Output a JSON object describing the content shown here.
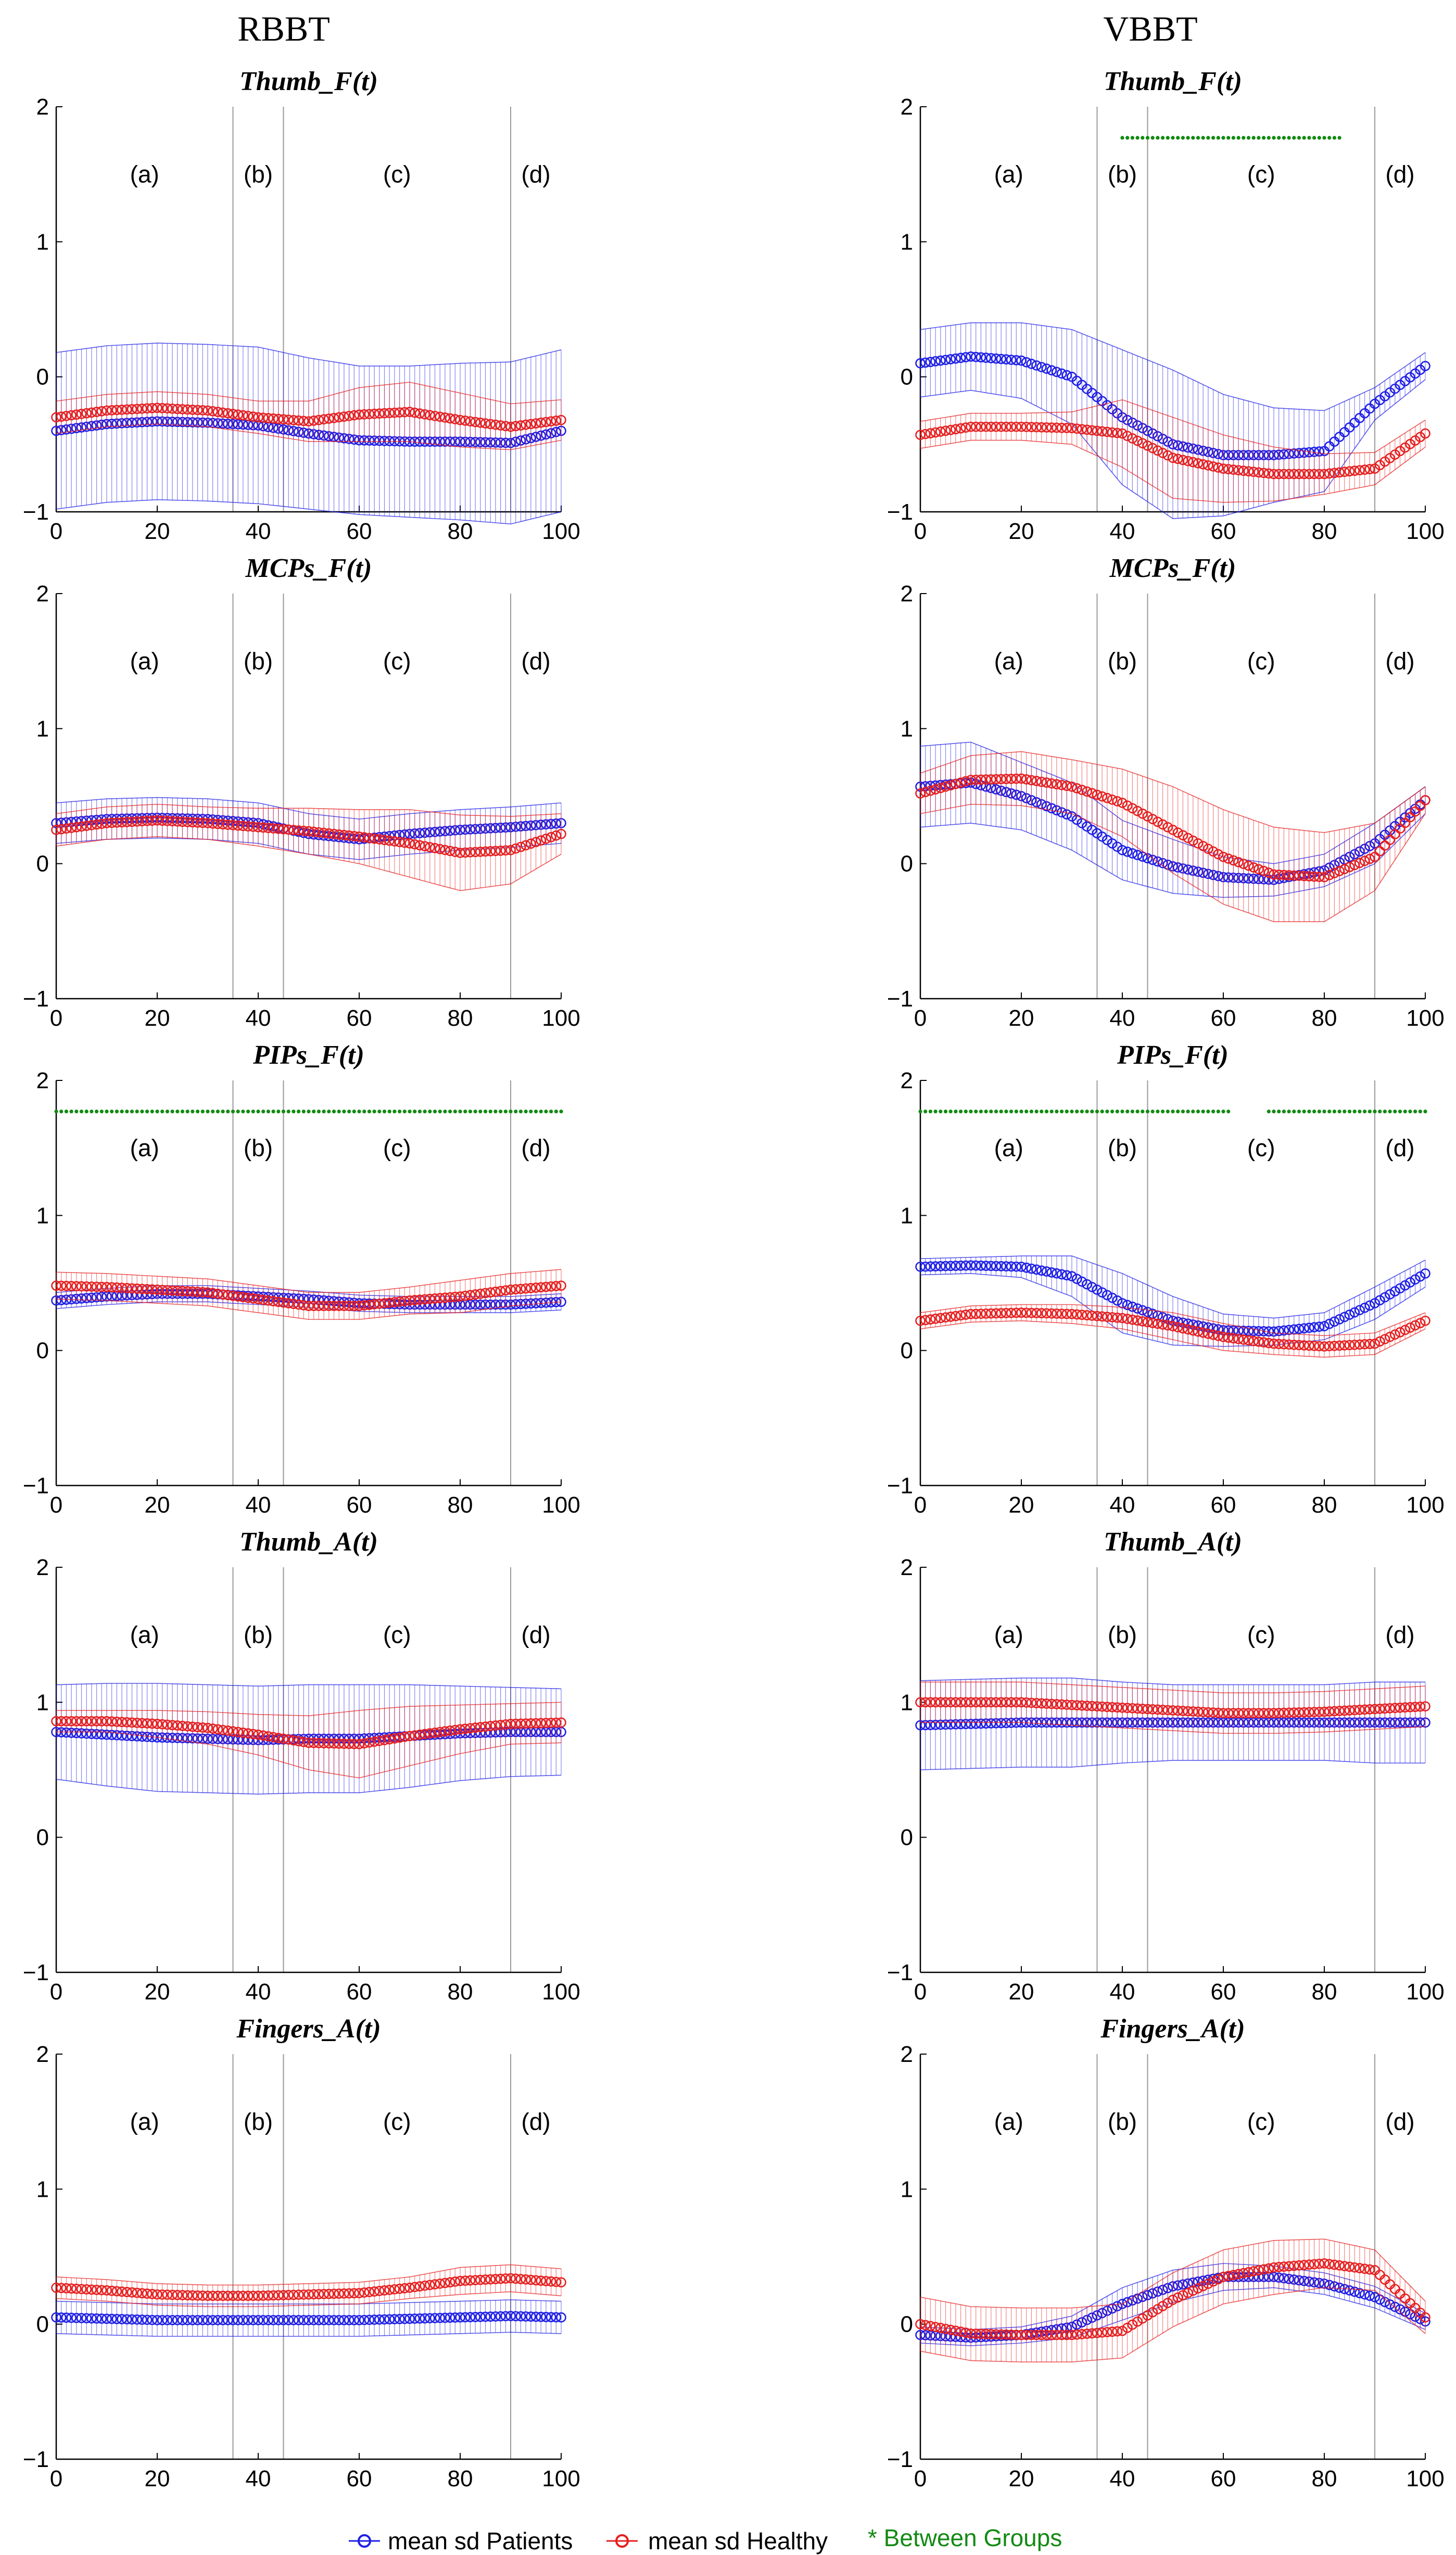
{
  "column_titles": [
    "RBBT",
    "VBBT"
  ],
  "phase_labels": [
    "(a)",
    "(b)",
    "(c)",
    "(d)"
  ],
  "legend": {
    "patients_label": "mean sd Patients",
    "healthy_label": "mean sd Healthy",
    "sig_label": "* Between Groups",
    "patients_color": "#1f1fe6",
    "healthy_color": "#e61f1f",
    "sig_color": "#128a12"
  },
  "chart_data": [
    {
      "type": "line",
      "column": "RBBT",
      "title": "Thumb_F(t)",
      "xlim": [
        0,
        100
      ],
      "ylim": [
        -1,
        2
      ],
      "xticks": [
        0,
        20,
        40,
        60,
        80,
        100
      ],
      "yticks": [
        -1,
        0,
        1,
        2
      ],
      "phase_boundaries": [
        35,
        45,
        90
      ],
      "x": [
        0,
        10,
        20,
        30,
        40,
        50,
        60,
        70,
        80,
        90,
        100
      ],
      "series": [
        {
          "name": "Patients",
          "values": [
            -0.4,
            -0.35,
            -0.33,
            -0.34,
            -0.36,
            -0.42,
            -0.47,
            -0.48,
            -0.48,
            -0.49,
            -0.4
          ],
          "sd": [
            0.58,
            0.58,
            0.58,
            0.58,
            0.58,
            0.56,
            0.55,
            0.56,
            0.58,
            0.6,
            0.6
          ]
        },
        {
          "name": "Healthy",
          "values": [
            -0.3,
            -0.25,
            -0.23,
            -0.25,
            -0.3,
            -0.33,
            -0.28,
            -0.26,
            -0.32,
            -0.37,
            -0.32
          ],
          "sd": [
            0.12,
            0.12,
            0.12,
            0.12,
            0.12,
            0.15,
            0.2,
            0.22,
            0.2,
            0.17,
            0.15
          ]
        }
      ],
      "significance": []
    },
    {
      "type": "line",
      "column": "VBBT",
      "title": "Thumb_F(t)",
      "xlim": [
        0,
        100
      ],
      "ylim": [
        -1,
        2
      ],
      "xticks": [
        0,
        20,
        40,
        60,
        80,
        100
      ],
      "yticks": [
        -1,
        0,
        1,
        2
      ],
      "phase_boundaries": [
        35,
        45,
        90
      ],
      "x": [
        0,
        10,
        20,
        30,
        40,
        50,
        60,
        70,
        80,
        90,
        100
      ],
      "series": [
        {
          "name": "Patients",
          "values": [
            0.1,
            0.15,
            0.12,
            0.0,
            -0.3,
            -0.5,
            -0.58,
            -0.58,
            -0.55,
            -0.2,
            0.08
          ],
          "sd": [
            0.25,
            0.25,
            0.28,
            0.35,
            0.5,
            0.55,
            0.45,
            0.35,
            0.3,
            0.12,
            0.1
          ]
        },
        {
          "name": "Healthy",
          "values": [
            -0.43,
            -0.37,
            -0.37,
            -0.38,
            -0.42,
            -0.6,
            -0.68,
            -0.72,
            -0.72,
            -0.68,
            -0.42
          ],
          "sd": [
            0.1,
            0.1,
            0.1,
            0.12,
            0.25,
            0.3,
            0.25,
            0.2,
            0.15,
            0.12,
            0.1
          ]
        }
      ],
      "significance": [
        [
          40,
          83
        ]
      ]
    },
    {
      "type": "line",
      "column": "RBBT",
      "title": "MCPs_F(t)",
      "xlim": [
        0,
        100
      ],
      "ylim": [
        -1,
        2
      ],
      "xticks": [
        0,
        20,
        40,
        60,
        80,
        100
      ],
      "yticks": [
        -1,
        0,
        1,
        2
      ],
      "phase_boundaries": [
        35,
        45,
        90
      ],
      "x": [
        0,
        10,
        20,
        30,
        40,
        50,
        60,
        70,
        80,
        90,
        100
      ],
      "series": [
        {
          "name": "Patients",
          "values": [
            0.3,
            0.33,
            0.34,
            0.33,
            0.3,
            0.22,
            0.18,
            0.22,
            0.25,
            0.27,
            0.3
          ],
          "sd": [
            0.15,
            0.15,
            0.15,
            0.15,
            0.15,
            0.15,
            0.15,
            0.15,
            0.15,
            0.15,
            0.15
          ]
        },
        {
          "name": "Healthy",
          "values": [
            0.25,
            0.3,
            0.32,
            0.3,
            0.27,
            0.24,
            0.2,
            0.15,
            0.08,
            0.1,
            0.22
          ],
          "sd": [
            0.12,
            0.12,
            0.12,
            0.12,
            0.14,
            0.17,
            0.2,
            0.25,
            0.28,
            0.25,
            0.15
          ]
        }
      ],
      "significance": []
    },
    {
      "type": "line",
      "column": "VBBT",
      "title": "MCPs_F(t)",
      "xlim": [
        0,
        100
      ],
      "ylim": [
        -1,
        2
      ],
      "xticks": [
        0,
        20,
        40,
        60,
        80,
        100
      ],
      "yticks": [
        -1,
        0,
        1,
        2
      ],
      "phase_boundaries": [
        35,
        45,
        90
      ],
      "x": [
        0,
        10,
        20,
        30,
        40,
        50,
        60,
        70,
        80,
        90,
        100
      ],
      "series": [
        {
          "name": "Patients",
          "values": [
            0.57,
            0.6,
            0.5,
            0.35,
            0.1,
            -0.02,
            -0.1,
            -0.12,
            -0.05,
            0.15,
            0.47
          ],
          "sd": [
            0.3,
            0.3,
            0.25,
            0.25,
            0.22,
            0.2,
            0.15,
            0.12,
            0.12,
            0.15,
            0.1
          ]
        },
        {
          "name": "Healthy",
          "values": [
            0.52,
            0.62,
            0.63,
            0.57,
            0.45,
            0.25,
            0.05,
            -0.08,
            -0.1,
            0.05,
            0.47
          ],
          "sd": [
            0.15,
            0.18,
            0.2,
            0.2,
            0.25,
            0.32,
            0.35,
            0.35,
            0.33,
            0.25,
            0.1
          ]
        }
      ],
      "significance": []
    },
    {
      "type": "line",
      "column": "RBBT",
      "title": "PIPs_F(t)",
      "xlim": [
        0,
        100
      ],
      "ylim": [
        -1,
        2
      ],
      "xticks": [
        0,
        20,
        40,
        60,
        80,
        100
      ],
      "yticks": [
        -1,
        0,
        1,
        2
      ],
      "phase_boundaries": [
        35,
        45,
        90
      ],
      "x": [
        0,
        10,
        20,
        30,
        40,
        50,
        60,
        70,
        80,
        90,
        100
      ],
      "series": [
        {
          "name": "Patients",
          "values": [
            0.37,
            0.4,
            0.42,
            0.42,
            0.4,
            0.38,
            0.35,
            0.34,
            0.34,
            0.34,
            0.36
          ],
          "sd": [
            0.06,
            0.06,
            0.06,
            0.06,
            0.06,
            0.06,
            0.06,
            0.06,
            0.06,
            0.06,
            0.06
          ]
        },
        {
          "name": "Healthy",
          "values": [
            0.48,
            0.47,
            0.45,
            0.43,
            0.38,
            0.33,
            0.33,
            0.37,
            0.4,
            0.45,
            0.48
          ],
          "sd": [
            0.1,
            0.1,
            0.1,
            0.1,
            0.1,
            0.1,
            0.1,
            0.1,
            0.12,
            0.12,
            0.12
          ]
        }
      ],
      "significance": [
        [
          0,
          100
        ]
      ]
    },
    {
      "type": "line",
      "column": "VBBT",
      "title": "PIPs_F(t)",
      "xlim": [
        0,
        100
      ],
      "ylim": [
        -1,
        2
      ],
      "xticks": [
        0,
        20,
        40,
        60,
        80,
        100
      ],
      "yticks": [
        -1,
        0,
        1,
        2
      ],
      "phase_boundaries": [
        35,
        45,
        90
      ],
      "x": [
        0,
        10,
        20,
        30,
        40,
        50,
        60,
        70,
        80,
        90,
        100
      ],
      "series": [
        {
          "name": "Patients",
          "values": [
            0.62,
            0.63,
            0.62,
            0.55,
            0.35,
            0.22,
            0.15,
            0.14,
            0.18,
            0.35,
            0.57
          ],
          "sd": [
            0.06,
            0.06,
            0.08,
            0.15,
            0.22,
            0.18,
            0.12,
            0.1,
            0.1,
            0.12,
            0.1
          ]
        },
        {
          "name": "Healthy",
          "values": [
            0.22,
            0.27,
            0.28,
            0.27,
            0.24,
            0.18,
            0.1,
            0.05,
            0.03,
            0.05,
            0.22
          ],
          "sd": [
            0.06,
            0.06,
            0.06,
            0.07,
            0.08,
            0.1,
            0.1,
            0.08,
            0.08,
            0.08,
            0.06
          ]
        }
      ],
      "significance": [
        [
          0,
          61
        ],
        [
          69,
          100
        ]
      ]
    },
    {
      "type": "line",
      "column": "RBBT",
      "title": "Thumb_A(t)",
      "xlim": [
        0,
        100
      ],
      "ylim": [
        -1,
        2
      ],
      "xticks": [
        0,
        20,
        40,
        60,
        80,
        100
      ],
      "yticks": [
        -1,
        0,
        1,
        2
      ],
      "phase_boundaries": [
        35,
        45,
        90
      ],
      "x": [
        0,
        10,
        20,
        30,
        40,
        50,
        60,
        70,
        80,
        90,
        100
      ],
      "series": [
        {
          "name": "Patients",
          "values": [
            0.78,
            0.76,
            0.74,
            0.73,
            0.72,
            0.73,
            0.73,
            0.75,
            0.77,
            0.78,
            0.78
          ],
          "sd": [
            0.35,
            0.38,
            0.4,
            0.4,
            0.4,
            0.4,
            0.4,
            0.38,
            0.35,
            0.33,
            0.32
          ]
        },
        {
          "name": "Healthy",
          "values": [
            0.86,
            0.86,
            0.84,
            0.81,
            0.76,
            0.7,
            0.69,
            0.75,
            0.8,
            0.84,
            0.85
          ],
          "sd": [
            0.08,
            0.08,
            0.1,
            0.12,
            0.15,
            0.2,
            0.25,
            0.22,
            0.18,
            0.15,
            0.15
          ]
        }
      ],
      "significance": []
    },
    {
      "type": "line",
      "column": "VBBT",
      "title": "Thumb_A(t)",
      "xlim": [
        0,
        100
      ],
      "ylim": [
        -1,
        2
      ],
      "xticks": [
        0,
        20,
        40,
        60,
        80,
        100
      ],
      "yticks": [
        -1,
        0,
        1,
        2
      ],
      "phase_boundaries": [
        35,
        45,
        90
      ],
      "x": [
        0,
        10,
        20,
        30,
        40,
        50,
        60,
        70,
        80,
        90,
        100
      ],
      "series": [
        {
          "name": "Patients",
          "values": [
            0.83,
            0.84,
            0.85,
            0.85,
            0.85,
            0.85,
            0.85,
            0.85,
            0.85,
            0.85,
            0.85
          ],
          "sd": [
            0.33,
            0.33,
            0.33,
            0.33,
            0.3,
            0.28,
            0.28,
            0.28,
            0.28,
            0.3,
            0.3
          ]
        },
        {
          "name": "Healthy",
          "values": [
            1.0,
            1.0,
            1.0,
            0.98,
            0.96,
            0.94,
            0.92,
            0.92,
            0.93,
            0.95,
            0.97
          ],
          "sd": [
            0.15,
            0.15,
            0.15,
            0.15,
            0.15,
            0.15,
            0.15,
            0.15,
            0.15,
            0.15,
            0.15
          ]
        }
      ],
      "significance": []
    },
    {
      "type": "line",
      "column": "RBBT",
      "title": "Fingers_A(t)",
      "xlim": [
        0,
        100
      ],
      "ylim": [
        -1,
        2
      ],
      "xticks": [
        0,
        20,
        40,
        60,
        80,
        100
      ],
      "yticks": [
        -1,
        0,
        1,
        2
      ],
      "phase_boundaries": [
        35,
        45,
        90
      ],
      "x": [
        0,
        10,
        20,
        30,
        40,
        50,
        60,
        70,
        80,
        90,
        100
      ],
      "series": [
        {
          "name": "Patients",
          "values": [
            0.05,
            0.04,
            0.03,
            0.03,
            0.03,
            0.03,
            0.03,
            0.04,
            0.05,
            0.06,
            0.05
          ],
          "sd": [
            0.12,
            0.12,
            0.12,
            0.12,
            0.12,
            0.12,
            0.12,
            0.12,
            0.12,
            0.12,
            0.12
          ]
        },
        {
          "name": "Healthy",
          "values": [
            0.27,
            0.25,
            0.22,
            0.21,
            0.21,
            0.22,
            0.23,
            0.27,
            0.32,
            0.34,
            0.31
          ],
          "sd": [
            0.08,
            0.08,
            0.08,
            0.08,
            0.08,
            0.08,
            0.08,
            0.08,
            0.1,
            0.1,
            0.1
          ]
        }
      ],
      "significance": []
    },
    {
      "type": "line",
      "column": "VBBT",
      "title": "Fingers_A(t)",
      "xlim": [
        0,
        100
      ],
      "ylim": [
        -1,
        2
      ],
      "xticks": [
        0,
        20,
        40,
        60,
        80,
        100
      ],
      "yticks": [
        -1,
        0,
        1,
        2
      ],
      "phase_boundaries": [
        35,
        45,
        90
      ],
      "x": [
        0,
        10,
        20,
        30,
        40,
        50,
        60,
        70,
        80,
        90,
        100
      ],
      "series": [
        {
          "name": "Patients",
          "values": [
            -0.08,
            -0.1,
            -0.08,
            -0.02,
            0.15,
            0.28,
            0.35,
            0.35,
            0.3,
            0.2,
            0.02
          ],
          "sd": [
            0.06,
            0.06,
            0.06,
            0.08,
            0.12,
            0.12,
            0.1,
            0.08,
            0.08,
            0.08,
            0.06
          ]
        },
        {
          "name": "Healthy",
          "values": [
            0.0,
            -0.07,
            -0.08,
            -0.08,
            -0.05,
            0.18,
            0.35,
            0.42,
            0.45,
            0.4,
            0.05
          ],
          "sd": [
            0.2,
            0.2,
            0.2,
            0.2,
            0.2,
            0.2,
            0.2,
            0.2,
            0.18,
            0.15,
            0.12
          ]
        }
      ],
      "significance": []
    }
  ]
}
